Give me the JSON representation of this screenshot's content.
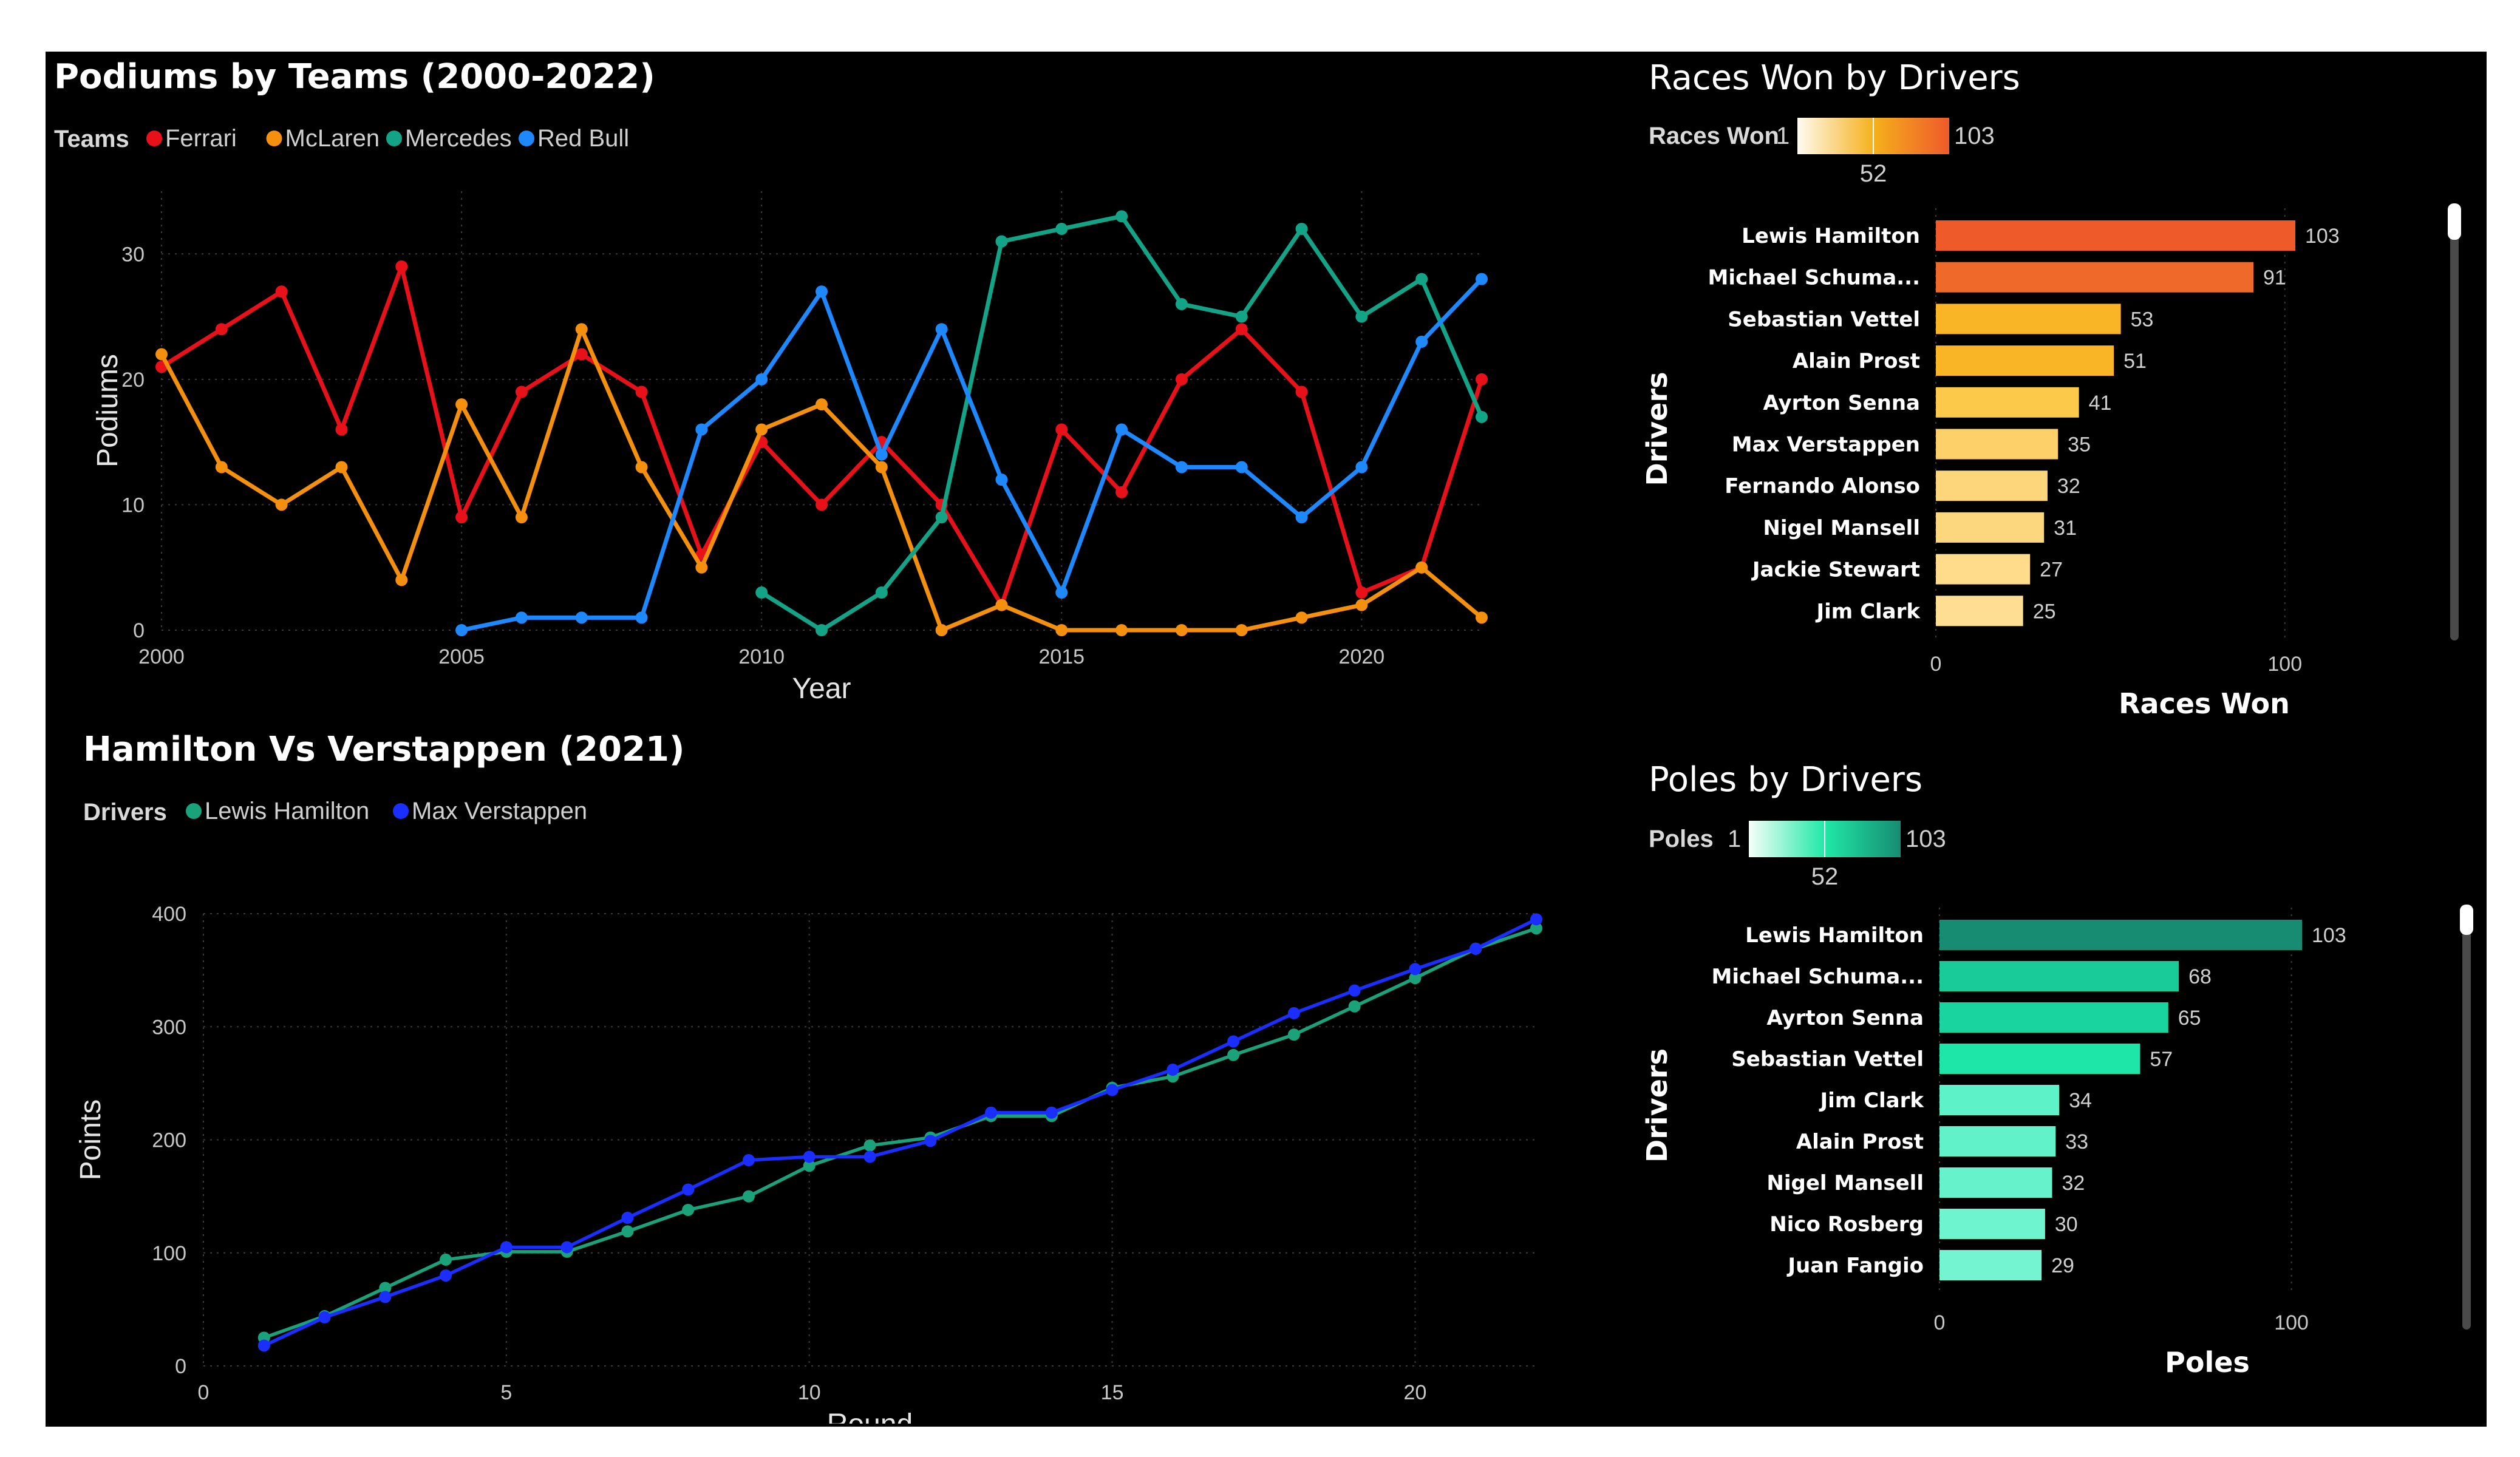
{
  "podiums": {
    "title": "Podiums by Teams (2000-2022)",
    "legend_title": "Teams",
    "chart_data": {
      "type": "line",
      "title": "Podiums by Teams (2000-2022)",
      "xlabel": "Year",
      "ylabel": "Podiums",
      "xlim": [
        2000,
        2022
      ],
      "ylim": [
        0,
        35
      ],
      "xticks": [
        2000,
        2005,
        2010,
        2015,
        2020
      ],
      "yticks": [
        0,
        10,
        20,
        30
      ],
      "grid": true,
      "legend_position": "top-left",
      "series": [
        {
          "name": "Ferrari",
          "color": "#e8111a",
          "points": [
            [
              2000,
              21
            ],
            [
              2001,
              24
            ],
            [
              2002,
              27
            ],
            [
              2003,
              16
            ],
            [
              2004,
              29
            ],
            [
              2005,
              9
            ],
            [
              2006,
              19
            ],
            [
              2007,
              22
            ],
            [
              2008,
              19
            ],
            [
              2009,
              6
            ],
            [
              2010,
              15
            ],
            [
              2011,
              10
            ],
            [
              2012,
              15
            ],
            [
              2013,
              10
            ],
            [
              2014,
              2
            ],
            [
              2015,
              16
            ],
            [
              2016,
              11
            ],
            [
              2017,
              20
            ],
            [
              2018,
              24
            ],
            [
              2019,
              19
            ],
            [
              2020,
              3
            ],
            [
              2021,
              5
            ],
            [
              2022,
              20
            ]
          ]
        },
        {
          "name": "McLaren",
          "color": "#f5900e",
          "points": [
            [
              2000,
              22
            ],
            [
              2001,
              13
            ],
            [
              2002,
              10
            ],
            [
              2003,
              13
            ],
            [
              2004,
              4
            ],
            [
              2005,
              18
            ],
            [
              2006,
              9
            ],
            [
              2007,
              24
            ],
            [
              2008,
              13
            ],
            [
              2009,
              5
            ],
            [
              2010,
              16
            ],
            [
              2011,
              18
            ],
            [
              2012,
              13
            ],
            [
              2013,
              0
            ],
            [
              2014,
              2
            ],
            [
              2015,
              0
            ],
            [
              2016,
              0
            ],
            [
              2017,
              0
            ],
            [
              2018,
              0
            ],
            [
              2019,
              1
            ],
            [
              2020,
              2
            ],
            [
              2021,
              5
            ],
            [
              2022,
              1
            ]
          ]
        },
        {
          "name": "Mercedes",
          "color": "#13a386",
          "points": [
            [
              2010,
              3
            ],
            [
              2011,
              0
            ],
            [
              2012,
              3
            ],
            [
              2013,
              9
            ],
            [
              2014,
              31
            ],
            [
              2015,
              32
            ],
            [
              2016,
              33
            ],
            [
              2017,
              26
            ],
            [
              2018,
              25
            ],
            [
              2019,
              32
            ],
            [
              2020,
              25
            ],
            [
              2021,
              28
            ],
            [
              2022,
              17
            ]
          ]
        },
        {
          "name": "Red Bull",
          "color": "#1e88ff",
          "points": [
            [
              2005,
              0
            ],
            [
              2006,
              1
            ],
            [
              2007,
              1
            ],
            [
              2008,
              1
            ],
            [
              2009,
              16
            ],
            [
              2010,
              20
            ],
            [
              2011,
              27
            ],
            [
              2012,
              14
            ],
            [
              2013,
              24
            ],
            [
              2014,
              12
            ],
            [
              2015,
              3
            ],
            [
              2016,
              16
            ],
            [
              2017,
              13
            ],
            [
              2018,
              13
            ],
            [
              2019,
              9
            ],
            [
              2020,
              13
            ],
            [
              2021,
              23
            ],
            [
              2022,
              28
            ]
          ]
        }
      ]
    }
  },
  "hamver": {
    "title": "Hamilton Vs Verstappen (2021)",
    "legend_title": "Drivers",
    "chart_data": {
      "type": "line",
      "title": "Hamilton Vs Verstappen (2021)",
      "xlabel": "Round",
      "ylabel": "Points",
      "xlim": [
        0,
        22
      ],
      "ylim": [
        0,
        400
      ],
      "xticks": [
        0,
        5,
        10,
        15,
        20
      ],
      "yticks": [
        0,
        100,
        200,
        300,
        400
      ],
      "grid": true,
      "legend_position": "top-left",
      "series": [
        {
          "name": "Lewis Hamilton",
          "color": "#1aa37a",
          "points": [
            [
              1,
              25
            ],
            [
              2,
              44
            ],
            [
              3,
              69
            ],
            [
              4,
              94
            ],
            [
              5,
              101
            ],
            [
              6,
              101
            ],
            [
              7,
              119
            ],
            [
              8,
              138
            ],
            [
              9,
              150
            ],
            [
              10,
              177
            ],
            [
              11,
              195
            ],
            [
              12,
              202
            ],
            [
              13,
              221
            ],
            [
              14,
              221
            ],
            [
              15,
              246
            ],
            [
              16,
              256
            ],
            [
              17,
              275
            ],
            [
              18,
              293
            ],
            [
              19,
              318
            ],
            [
              20,
              343
            ],
            [
              21,
              369
            ],
            [
              22,
              387
            ]
          ]
        },
        {
          "name": "Max Verstappen",
          "color": "#1a2fff",
          "points": [
            [
              1,
              18
            ],
            [
              2,
              43
            ],
            [
              3,
              61
            ],
            [
              4,
              80
            ],
            [
              5,
              105
            ],
            [
              6,
              105
            ],
            [
              7,
              131
            ],
            [
              8,
              156
            ],
            [
              9,
              182
            ],
            [
              10,
              185
            ],
            [
              11,
              185
            ],
            [
              12,
              199
            ],
            [
              13,
              224
            ],
            [
              14,
              224
            ],
            [
              15,
              244
            ],
            [
              16,
              262
            ],
            [
              17,
              287
            ],
            [
              18,
              312
            ],
            [
              19,
              332
            ],
            [
              20,
              351
            ],
            [
              21,
              369
            ],
            [
              22,
              395
            ]
          ]
        }
      ]
    }
  },
  "races": {
    "title": "Races Won by Drivers",
    "legend_title": "Races Won",
    "legend_min": "1",
    "legend_mid": "52",
    "legend_max": "103",
    "gradient": [
      "#fffbf0",
      "#f5b11c",
      "#ee5a2a"
    ],
    "chart_data": {
      "type": "bar",
      "orientation": "horizontal",
      "title": "Races Won by Drivers",
      "xlabel": "Races Won",
      "ylabel": "Drivers",
      "xlim": [
        0,
        103
      ],
      "xticks": [
        0,
        100
      ],
      "categories": [
        "Lewis Hamilton",
        "Michael Schuma...",
        "Sebastian Vettel",
        "Alain Prost",
        "Ayrton Senna",
        "Max Verstappen",
        "Fernando Alonso",
        "Nigel Mansell",
        "Jackie Stewart",
        "Jim Clark"
      ],
      "values": [
        103,
        91,
        53,
        51,
        41,
        35,
        32,
        31,
        27,
        25
      ],
      "colors": [
        "#ee5a2a",
        "#ef6a2a",
        "#f9b526",
        "#fab526",
        "#fcc94a",
        "#fdd06a",
        "#fdd57a",
        "#fdd77e",
        "#fedc8c",
        "#fede92"
      ]
    }
  },
  "poles": {
    "title": "Poles by Drivers",
    "legend_title": "Poles",
    "legend_min": "1",
    "legend_mid": "52",
    "legend_max": "103",
    "gradient": [
      "#f5fff9",
      "#20e8a6",
      "#178c72"
    ],
    "chart_data": {
      "type": "bar",
      "orientation": "horizontal",
      "title": "Poles by Drivers",
      "xlabel": "Poles",
      "ylabel": "Drivers",
      "xlim": [
        0,
        103
      ],
      "xticks": [
        0,
        100
      ],
      "categories": [
        "Lewis Hamilton",
        "Michael Schuma...",
        "Ayrton Senna",
        "Sebastian Vettel",
        "Jim Clark",
        "Alain Prost",
        "Nigel Mansell",
        "Nico Rosberg",
        "Juan Fangio"
      ],
      "values": [
        103,
        68,
        65,
        57,
        34,
        33,
        32,
        30,
        29
      ],
      "colors": [
        "#178c72",
        "#19cb98",
        "#1ad4a0",
        "#1ee6a8",
        "#5ef2c8",
        "#62f2ca",
        "#66f3cc",
        "#6ef4cf",
        "#74f4d1"
      ]
    }
  }
}
